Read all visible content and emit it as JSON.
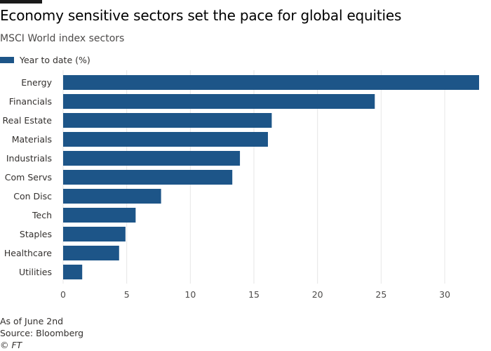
{
  "header": {
    "title": "Economy sensitive sectors set the pace for global equities",
    "subtitle": "MSCI World index sectors"
  },
  "legend": {
    "label": "Year to date (%)"
  },
  "colors": {
    "bar": "#1d5588",
    "grid": "#e6e6e6",
    "axis": "#4d4b4a",
    "text": "#33302e"
  },
  "chart_data": {
    "type": "bar",
    "orientation": "horizontal",
    "title": "Economy sensitive sectors set the pace for global equities",
    "subtitle": "MSCI World index sectors",
    "xlabel": "",
    "ylabel": "",
    "categories": [
      "Energy",
      "Financials",
      "Real Estate",
      "Materials",
      "Industrials",
      "Com Servs",
      "Con Disc",
      "Tech",
      "Staples",
      "Healthcare",
      "Utilities"
    ],
    "series": [
      {
        "name": "Year to date (%)",
        "values": [
          32.7,
          24.5,
          16.4,
          16.1,
          13.9,
          13.3,
          7.7,
          5.7,
          4.9,
          4.4,
          1.5
        ]
      }
    ],
    "xlim": [
      0,
      32.7
    ],
    "xticks": [
      0,
      5,
      10,
      15,
      20,
      25,
      30
    ],
    "grid": "vertical",
    "legend_position": "top-left"
  },
  "footer": {
    "note": "As of June 2nd",
    "source": "Source: Bloomberg",
    "credit": "© FT"
  }
}
